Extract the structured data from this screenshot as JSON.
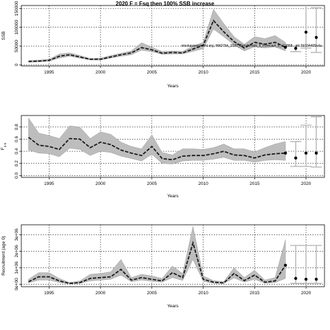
{
  "title": "2020 F = Fsq then 100% SSB increase",
  "note": "stockassessment.org, HAD7bk_2020_Benchmark_ll_Forecast_ll_c12868 , git: 5b334405cda",
  "colors": {
    "band": "#bdbdbd",
    "line": "#1a1a1a",
    "error_bar": "#bdbdbd",
    "point": "#000000",
    "grid": "#000000"
  },
  "chart_data": [
    {
      "type": "line",
      "xlabel": "Years",
      "ylabel": "SSB",
      "xlim": [
        1992.3,
        2021.8
      ],
      "ylim": [
        -3000,
        158000
      ],
      "xticks": [
        1995,
        2000,
        2005,
        2010,
        2015,
        2020
      ],
      "yticks": [
        0,
        50000,
        100000,
        150000
      ],
      "ytick_labels": [
        "0",
        "50000",
        "100000",
        "150000"
      ],
      "grid": true,
      "years": [
        1993,
        1994,
        1995,
        1996,
        1997,
        1998,
        1999,
        2000,
        2001,
        2002,
        2003,
        2004,
        2005,
        2006,
        2007,
        2008,
        2009,
        2010,
        2011,
        2012,
        2013,
        2014,
        2015,
        2016,
        2017,
        2018
      ],
      "estimate": [
        9000,
        10000,
        12000,
        23000,
        27000,
        21000,
        15000,
        15000,
        21000,
        27000,
        32000,
        46000,
        40000,
        31000,
        33000,
        32000,
        42000,
        52000,
        118000,
        88000,
        62000,
        45000,
        60000,
        55000,
        60000,
        47000
      ],
      "lower": [
        7000,
        8000,
        10000,
        18000,
        23000,
        18000,
        13000,
        13000,
        18000,
        23000,
        27000,
        39000,
        35000,
        28000,
        29000,
        29000,
        36000,
        43000,
        95000,
        75000,
        53000,
        37000,
        48000,
        45000,
        48000,
        37000
      ],
      "upper": [
        11000,
        13000,
        15000,
        29000,
        32000,
        25000,
        17000,
        18000,
        25000,
        31000,
        37000,
        59000,
        47000,
        36000,
        37000,
        36000,
        50000,
        60000,
        148000,
        110000,
        75000,
        55000,
        75000,
        70000,
        78000,
        60000
      ],
      "forecast": [
        {
          "year": 2019,
          "value": 44000,
          "low": 35000,
          "high": 50000
        },
        {
          "year": 2020,
          "value": 87000,
          "low": 45000,
          "high": 160000
        },
        {
          "year": 2021,
          "value": 73000,
          "low": 33000,
          "high": 152000
        }
      ]
    },
    {
      "type": "line",
      "xlabel": "Years",
      "ylabel": "F3-5",
      "ylabel_main": "F",
      "ylabel_sub": "3-5",
      "xlim": [
        1992.3,
        2021.8
      ],
      "ylim": [
        -0.03,
        0.99
      ],
      "xticks": [
        1995,
        2000,
        2005,
        2010,
        2015,
        2020
      ],
      "yticks": [
        0.0,
        0.2,
        0.4,
        0.6,
        0.8
      ],
      "ytick_labels": [
        "0.0",
        "0.2",
        "0.4",
        "0.6",
        "0.8"
      ],
      "grid": true,
      "years": [
        1993,
        1994,
        1995,
        1996,
        1997,
        1998,
        1999,
        2000,
        2001,
        2002,
        2003,
        2004,
        2005,
        2006,
        2007,
        2008,
        2009,
        2010,
        2011,
        2012,
        2013,
        2014,
        2015,
        2016,
        2017,
        2018
      ],
      "estimate": [
        0.63,
        0.5,
        0.48,
        0.43,
        0.61,
        0.6,
        0.46,
        0.55,
        0.51,
        0.42,
        0.37,
        0.33,
        0.48,
        0.28,
        0.26,
        0.32,
        0.33,
        0.33,
        0.36,
        0.4,
        0.34,
        0.33,
        0.29,
        0.34,
        0.36,
        0.37
      ],
      "lower": [
        0.42,
        0.37,
        0.36,
        0.31,
        0.45,
        0.43,
        0.33,
        0.4,
        0.38,
        0.32,
        0.28,
        0.24,
        0.35,
        0.2,
        0.19,
        0.24,
        0.25,
        0.25,
        0.27,
        0.3,
        0.25,
        0.25,
        0.22,
        0.25,
        0.26,
        0.25
      ],
      "upper": [
        0.95,
        0.7,
        0.66,
        0.61,
        0.82,
        0.8,
        0.61,
        0.72,
        0.68,
        0.55,
        0.48,
        0.44,
        0.67,
        0.38,
        0.34,
        0.44,
        0.44,
        0.43,
        0.46,
        0.52,
        0.44,
        0.44,
        0.39,
        0.46,
        0.52,
        0.56
      ],
      "forecast": [
        {
          "year": 2019,
          "value": 0.29,
          "low": 0.15,
          "high": 0.56
        },
        {
          "year": 2020,
          "value": 0.37,
          "low": 0.15,
          "high": 0.83
        },
        {
          "year": 2021,
          "value": 0.37,
          "low": 0.14,
          "high": 0.97
        }
      ]
    },
    {
      "type": "line",
      "xlabel": "Years",
      "ylabel": "Recruitment (age 0)",
      "xlim": [
        1992.3,
        2021.8
      ],
      "ylim": [
        -150000,
        3600000
      ],
      "xticks": [
        1995,
        2000,
        2005,
        2010,
        2015,
        2020
      ],
      "yticks": [
        0,
        1000000,
        2000000,
        3000000
      ],
      "ytick_labels": [
        "0e+00",
        "1e+06",
        "2e+06",
        "3e+06"
      ],
      "grid": true,
      "years": [
        1993,
        1994,
        1995,
        1996,
        1997,
        1998,
        1999,
        2000,
        2001,
        2002,
        2003,
        2004,
        2005,
        2006,
        2007,
        2008,
        2009,
        2010,
        2011,
        2012,
        2013,
        2014,
        2015,
        2016,
        2017,
        2018
      ],
      "estimate": [
        150000,
        450000,
        450000,
        200000,
        50000,
        100000,
        350000,
        400000,
        450000,
        900000,
        250000,
        400000,
        300000,
        200000,
        700000,
        400000,
        2500000,
        300000,
        120000,
        80000,
        650000,
        220000,
        550000,
        120000,
        200000,
        1150000
      ],
      "lower": [
        80000,
        250000,
        250000,
        100000,
        20000,
        50000,
        200000,
        250000,
        300000,
        550000,
        150000,
        250000,
        180000,
        120000,
        400000,
        230000,
        1500000,
        170000,
        60000,
        40000,
        380000,
        120000,
        300000,
        60000,
        100000,
        350000
      ],
      "upper": [
        300000,
        700000,
        700000,
        350000,
        100000,
        200000,
        600000,
        650000,
        750000,
        1500000,
        400000,
        600000,
        500000,
        350000,
        1100000,
        650000,
        3500000,
        500000,
        220000,
        160000,
        1000000,
        400000,
        850000,
        250000,
        400000,
        2700000
      ],
      "forecast": [
        {
          "year": 2019,
          "value": 350000,
          "low": 50000,
          "high": 2350000
        },
        {
          "year": 2020,
          "value": 300000,
          "low": 50000,
          "high": 2350000
        },
        {
          "year": 2021,
          "value": 300000,
          "low": 50000,
          "high": 2350000
        }
      ]
    }
  ]
}
